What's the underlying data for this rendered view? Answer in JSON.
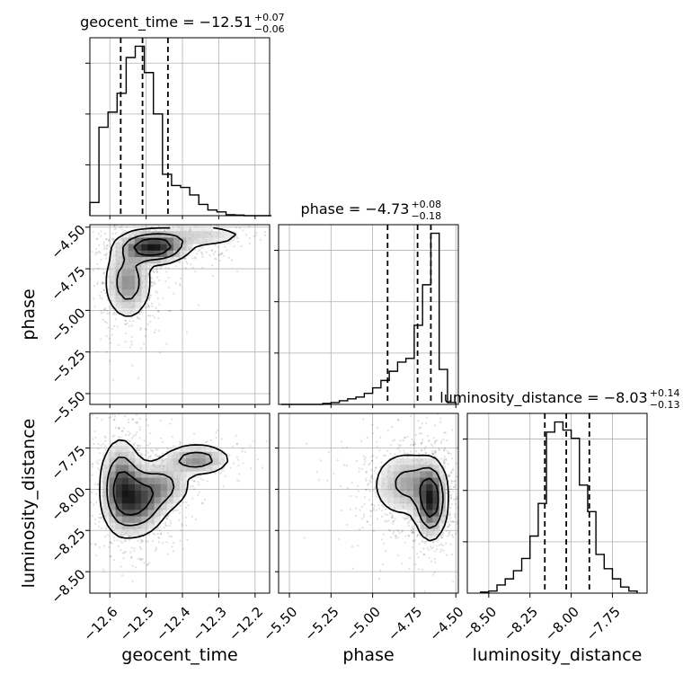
{
  "chart_data": {
    "type": "corner",
    "parameters": [
      "geocent_time",
      "phase",
      "luminosity_distance"
    ],
    "titles": [
      {
        "param": "geocent_time",
        "prefix": "geocent_time = ",
        "median": "−12.51",
        "plus": "+0.07",
        "minus": "−0.06"
      },
      {
        "param": "phase",
        "prefix": "phase = ",
        "median": "−4.73",
        "plus": "+0.08",
        "minus": "−0.18"
      },
      {
        "param": "luminosity_distance",
        "prefix": "luminosity_distance = ",
        "median": "−8.03",
        "plus": "+0.14",
        "minus": "−0.13"
      }
    ],
    "axis_labels": {
      "x": [
        "geocent_time",
        "phase",
        "luminosity_distance"
      ],
      "y": [
        "",
        "phase",
        "luminosity_distance"
      ]
    },
    "ranges": {
      "geocent_time": [
        -12.655,
        -12.16
      ],
      "phase": [
        -5.565,
        -4.485
      ],
      "luminosity_distance": [
        -8.63,
        -7.54
      ]
    },
    "ticks": {
      "geocent_time": [
        -12.6,
        -12.5,
        -12.4,
        -12.3,
        -12.2
      ],
      "phase": [
        -5.5,
        -5.25,
        -5.0,
        -4.75,
        -4.5
      ],
      "luminosity_distance": [
        -8.5,
        -8.25,
        -8.0,
        -7.75
      ]
    },
    "tick_labels": {
      "geocent_time": [
        "−12.6",
        "−12.5",
        "−12.4",
        "−12.3",
        "−12.2"
      ],
      "phase": [
        "−5.50",
        "−5.25",
        "−5.00",
        "−4.75",
        "−4.50"
      ],
      "luminosity_distance": [
        "−8.50",
        "−8.25",
        "−8.00",
        "−7.75"
      ]
    },
    "quantiles": {
      "geocent_time": [
        -12.57,
        -12.51,
        -12.44
      ],
      "phase": [
        -4.91,
        -4.73,
        -4.65
      ],
      "luminosity_distance": [
        -8.16,
        -8.03,
        -7.89
      ]
    },
    "histograms": {
      "geocent_time": {
        "edges": [
          -12.655,
          -12.63,
          -12.605,
          -12.58,
          -12.555,
          -12.53,
          -12.505,
          -12.48,
          -12.455,
          -12.43,
          -12.405,
          -12.38,
          -12.355,
          -12.33,
          -12.305,
          -12.28,
          -12.255,
          -12.23,
          -12.205,
          -12.18,
          -12.155
        ],
        "counts": [
          0.07,
          0.47,
          0.55,
          0.65,
          0.84,
          0.9,
          0.76,
          0.54,
          0.22,
          0.16,
          0.15,
          0.11,
          0.06,
          0.03,
          0.02,
          0.005,
          0.003,
          0,
          0,
          0
        ]
      },
      "phase": {
        "edges": [
          -5.55,
          -5.5,
          -5.45,
          -5.4,
          -5.35,
          -5.3,
          -5.25,
          -5.2,
          -5.15,
          -5.1,
          -5.05,
          -5.0,
          -4.95,
          -4.9,
          -4.85,
          -4.8,
          -4.75,
          -4.7,
          -4.65,
          -4.6,
          -4.55,
          -4.5
        ],
        "counts": [
          0,
          0,
          0,
          0,
          0,
          0.005,
          0.01,
          0.02,
          0.03,
          0.04,
          0.06,
          0.09,
          0.13,
          0.18,
          0.23,
          0.25,
          0.43,
          0.65,
          0.93,
          0.19,
          0.01
        ]
      },
      "luminosity_distance": {
        "edges": [
          -8.55,
          -8.5,
          -8.45,
          -8.4,
          -8.35,
          -8.3,
          -8.25,
          -8.2,
          -8.15,
          -8.1,
          -8.05,
          -8.0,
          -7.95,
          -7.9,
          -7.85,
          -7.8,
          -7.75,
          -7.7,
          -7.65,
          -7.6
        ],
        "counts": [
          0.005,
          0.01,
          0.04,
          0.07,
          0.11,
          0.17,
          0.28,
          0.44,
          0.79,
          0.84,
          0.8,
          0.76,
          0.53,
          0.4,
          0.19,
          0.12,
          0.07,
          0.03,
          0.01
        ]
      }
    },
    "density_2d": {
      "phase_vs_geocent_time": {
        "x": "geocent_time",
        "y": "phase",
        "components": [
          {
            "mean": [
              -12.55,
              -4.83
            ],
            "sd": [
              0.035,
              0.12
            ],
            "weight": 0.4
          },
          {
            "mean": [
              -12.48,
              -4.62
            ],
            "sd": [
              0.05,
              0.05
            ],
            "weight": 0.45
          },
          {
            "mean": [
              -12.35,
              -4.55
            ],
            "sd": [
              0.08,
              0.04
            ],
            "weight": 0.15
          }
        ]
      },
      "luminosity_distance_vs_geocent_time": {
        "x": "geocent_time",
        "y": "luminosity_distance",
        "components": [
          {
            "mean": [
              -12.57,
              -7.98
            ],
            "sd": [
              0.03,
              0.15
            ],
            "weight": 0.35
          },
          {
            "mean": [
              -12.52,
              -8.07
            ],
            "sd": [
              0.04,
              0.11
            ],
            "weight": 0.35
          },
          {
            "mean": [
              -12.45,
              -7.98
            ],
            "sd": [
              0.04,
              0.08
            ],
            "weight": 0.15
          },
          {
            "mean": [
              -12.36,
              -7.82
            ],
            "sd": [
              0.05,
              0.05
            ],
            "weight": 0.15
          }
        ]
      },
      "luminosity_distance_vs_phase": {
        "x": "phase",
        "y": "luminosity_distance",
        "components": [
          {
            "mean": [
              -4.65,
              -8.07
            ],
            "sd": [
              0.05,
              0.12
            ],
            "weight": 0.5
          },
          {
            "mean": [
              -4.78,
              -7.96
            ],
            "sd": [
              0.1,
              0.1
            ],
            "weight": 0.35
          },
          {
            "mean": [
              -4.88,
              -8.0
            ],
            "sd": [
              0.12,
              0.15
            ],
            "weight": 0.15
          }
        ]
      }
    },
    "grid": true
  }
}
